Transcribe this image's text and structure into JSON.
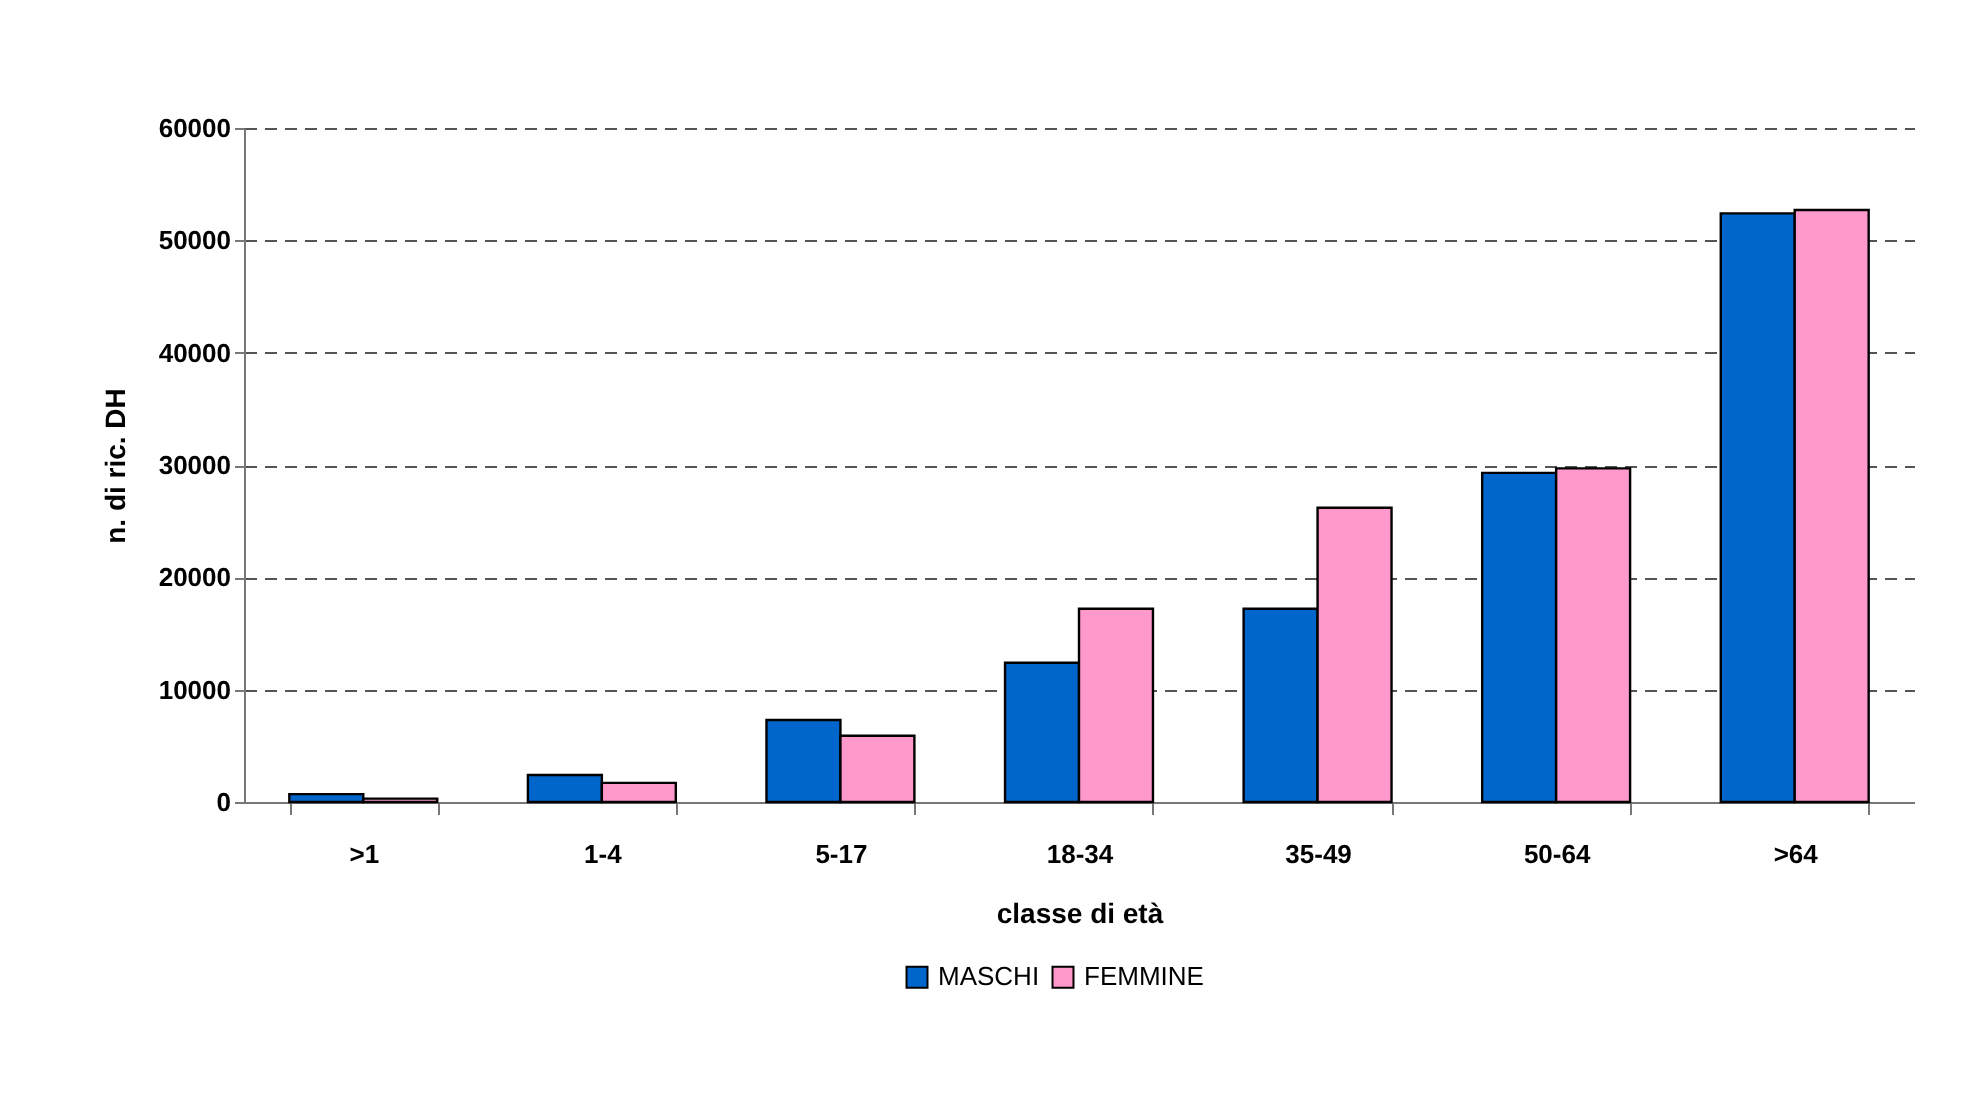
{
  "chart_data": {
    "type": "bar",
    "xlabel": "classe di età",
    "ylabel": "n. di ric. DH",
    "categories": [
      ">1",
      "1-4",
      "5-17",
      "18-34",
      "35-49",
      "50-64",
      ">64"
    ],
    "series": [
      {
        "name": "MASCHI",
        "color": "#0066cc",
        "values": [
          700,
          2400,
          7300,
          12400,
          17200,
          29300,
          52400
        ]
      },
      {
        "name": "FEMMINE",
        "color": "#ff99cc",
        "values": [
          300,
          1700,
          5900,
          17200,
          26200,
          29700,
          52700
        ]
      }
    ],
    "ylim": [
      0,
      60000
    ],
    "yticks": [
      0,
      10000,
      20000,
      30000,
      40000,
      50000,
      60000
    ],
    "grid": "y",
    "legend": "bottom"
  }
}
